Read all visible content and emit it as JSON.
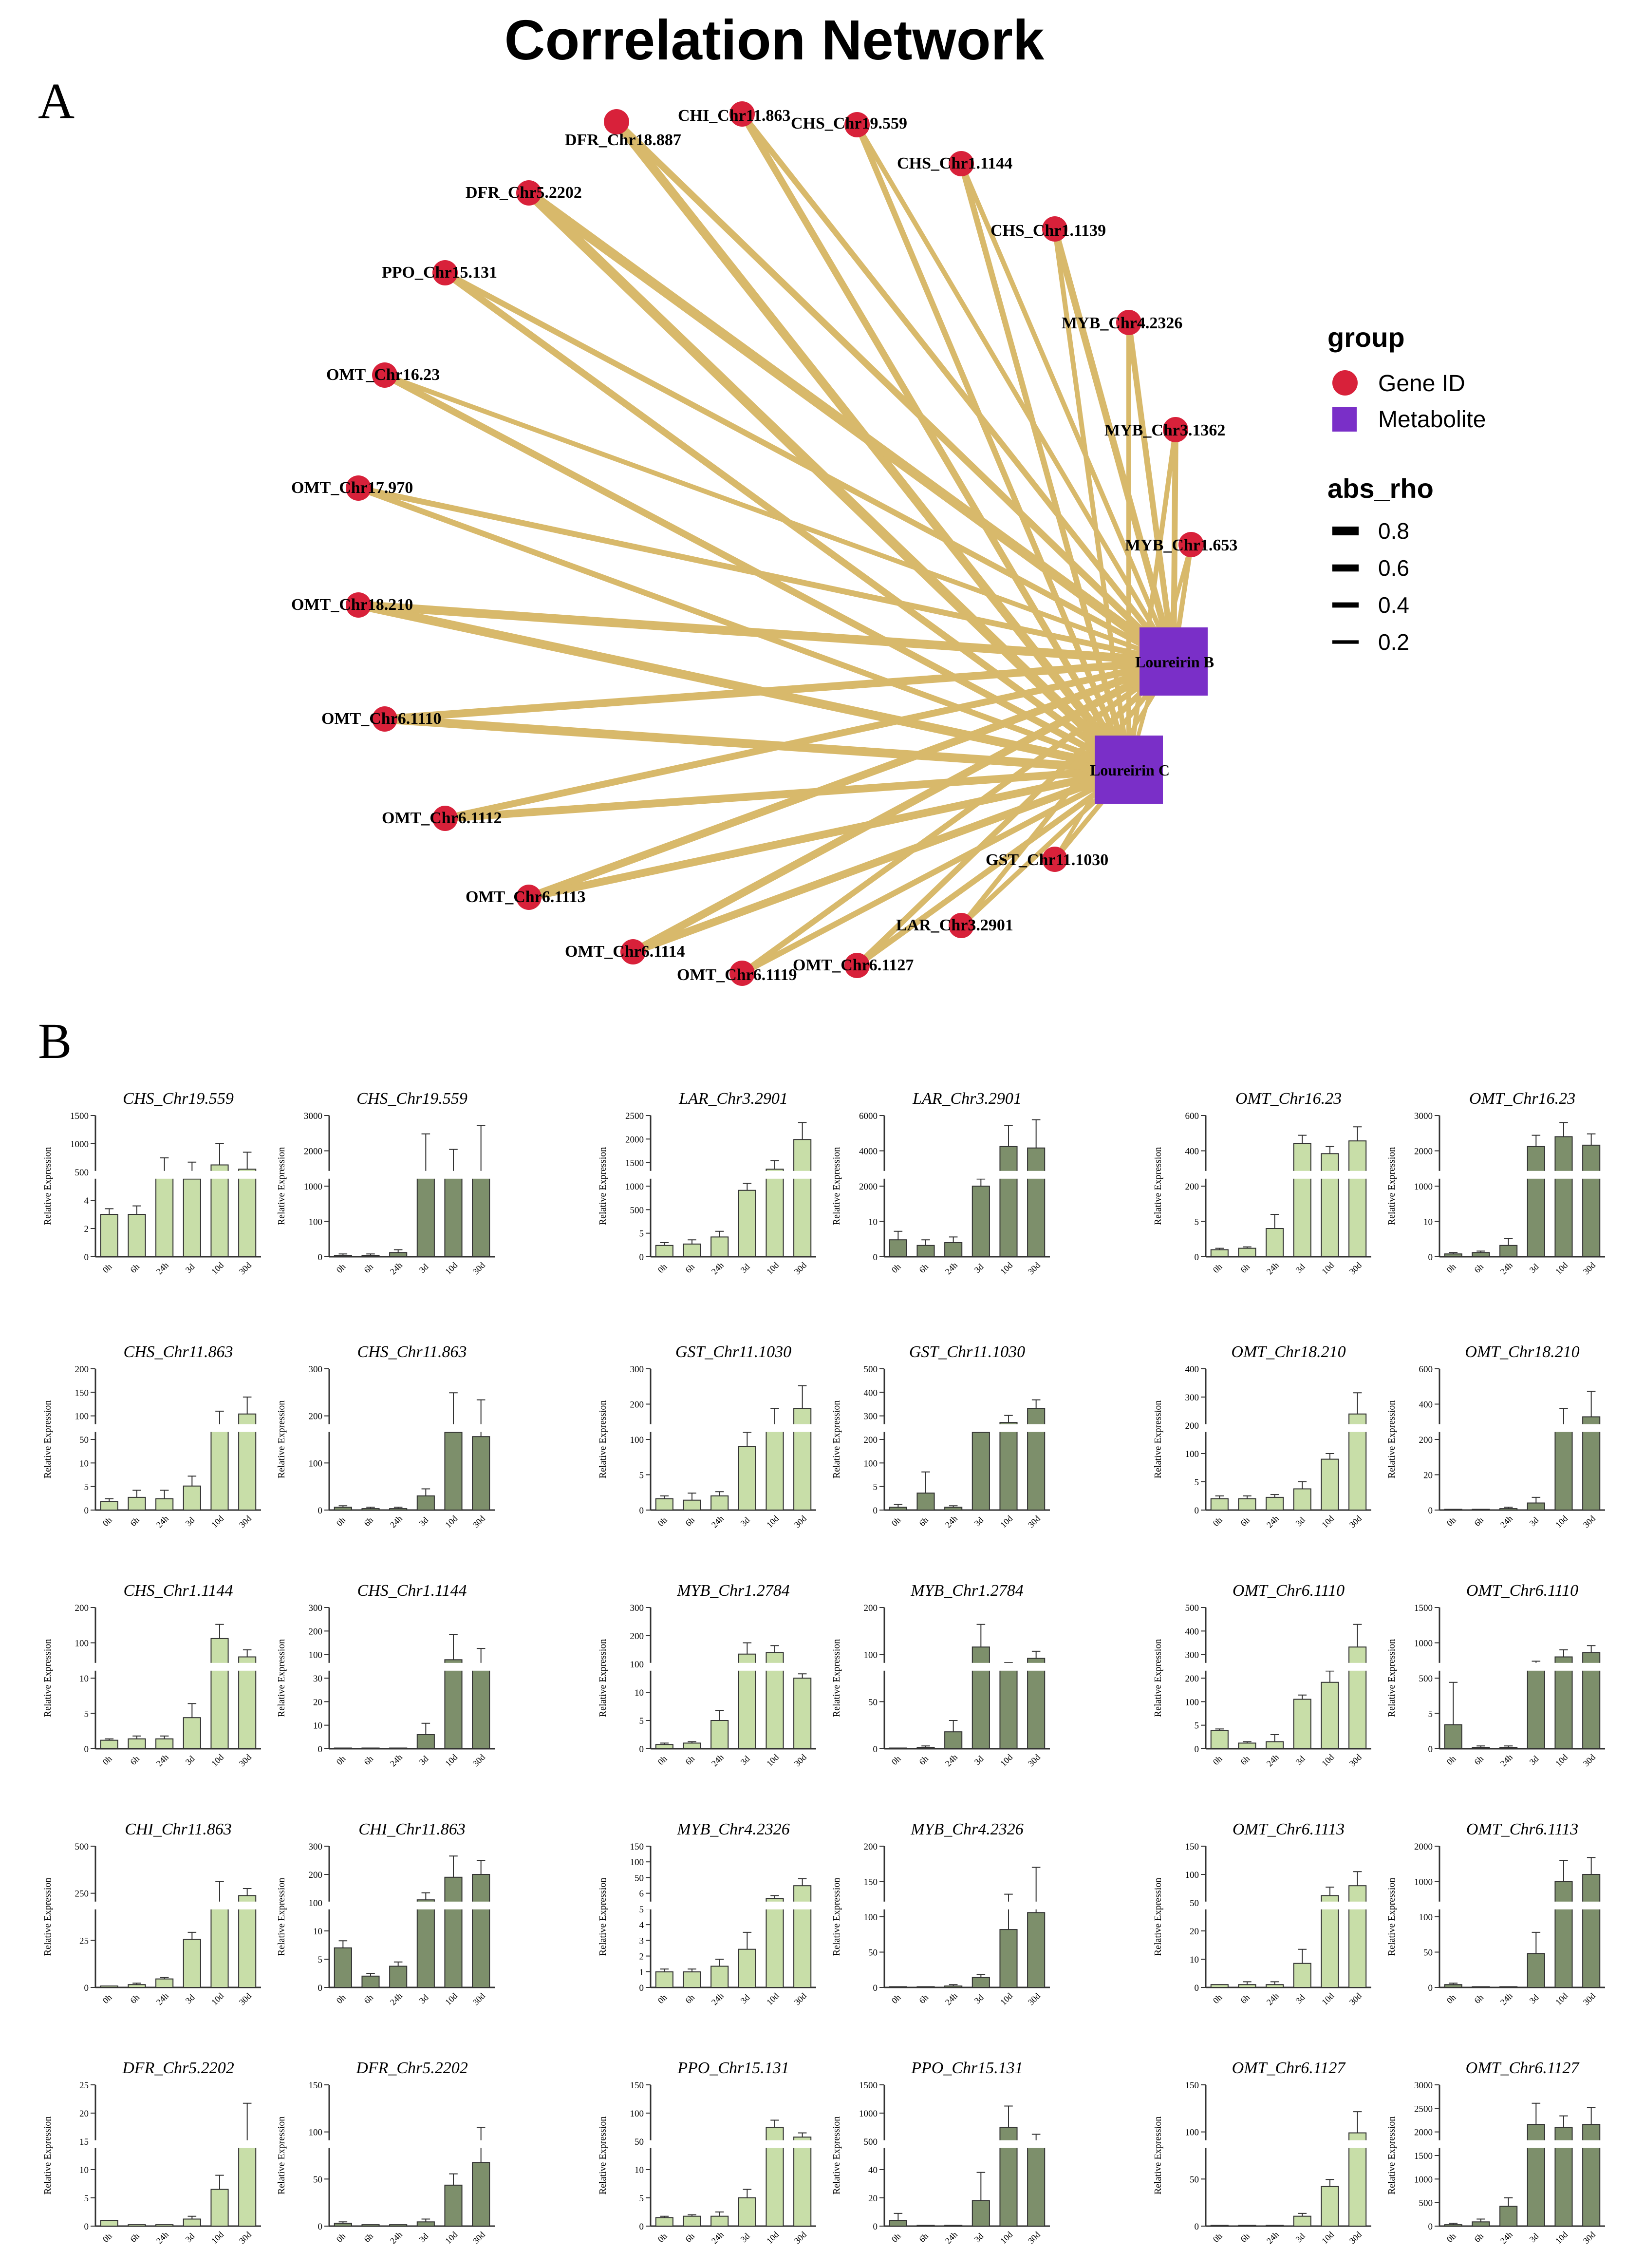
{
  "title": "Correlation Network",
  "panel_a_label": "A",
  "panel_b_label": "B",
  "colors": {
    "gene": "#d8213a",
    "metabolite": "#7a2fc8",
    "edge": "#d8b96b",
    "light_bar": "#c8dea8",
    "dark_bar": "#7d8f6b"
  },
  "legend": {
    "group_title": "group",
    "gene_label": "Gene ID",
    "metabolite_label": "Metabolite",
    "rho_title": "abs_rho",
    "rho_values": [
      0.8,
      0.6,
      0.4,
      0.2
    ],
    "rho_labels": [
      "0.8",
      "0.6",
      "0.4",
      "0.2"
    ]
  },
  "chart_data": [
    {
      "type": "network",
      "title": "Correlation Network",
      "groups": [
        "Gene ID",
        "Metabolite"
      ],
      "metabolites": [
        "Loureirin B",
        "Loureirin C"
      ],
      "genes": [
        {
          "id": "DFR_Chr18.887",
          "rho_B": 0.5,
          "rho_C": 0.7
        },
        {
          "id": "CHI_Chr11.863",
          "rho_B": 0.4,
          "rho_C": 0.5
        },
        {
          "id": "CHS_Chr19.559",
          "rho_B": 0.3,
          "rho_C": 0.4
        },
        {
          "id": "CHS_Chr1.1144",
          "rho_B": 0.3,
          "rho_C": 0.4
        },
        {
          "id": "CHS_Chr1.1139",
          "rho_B": 0.5,
          "rho_C": 0.3
        },
        {
          "id": "MYB_Chr4.2326",
          "rho_B": 0.4,
          "rho_C": 0.3
        },
        {
          "id": "MYB_Chr3.1362",
          "rho_B": 0.4,
          "rho_C": 0.3
        },
        {
          "id": "MYB_Chr1.653",
          "rho_B": 0.3,
          "rho_C": 0.2
        },
        {
          "id": "DFR_Chr5.2202",
          "rho_B": 0.8,
          "rho_C": 0.8
        },
        {
          "id": "PPO_Chr15.131",
          "rho_B": 0.4,
          "rho_C": 0.5
        },
        {
          "id": "OMT_Chr16.23",
          "rho_B": 0.3,
          "rho_C": 0.5
        },
        {
          "id": "OMT_Chr17.970",
          "rho_B": 0.4,
          "rho_C": 0.4
        },
        {
          "id": "OMT_Chr18.210",
          "rho_B": 0.7,
          "rho_C": 0.7
        },
        {
          "id": "OMT_Chr6.1110",
          "rho_B": 0.6,
          "rho_C": 0.7
        },
        {
          "id": "OMT_Chr6.1112",
          "rho_B": 0.5,
          "rho_C": 0.6
        },
        {
          "id": "OMT_Chr6.1113",
          "rho_B": 0.6,
          "rho_C": 0.6
        },
        {
          "id": "OMT_Chr6.1114",
          "rho_B": 0.6,
          "rho_C": 0.6
        },
        {
          "id": "OMT_Chr6.1119",
          "rho_B": 0.4,
          "rho_C": 0.4
        },
        {
          "id": "OMT_Chr6.1127",
          "rho_B": 0.4,
          "rho_C": 0.4
        },
        {
          "id": "LAR_Chr3.2901",
          "rho_B": 0.3,
          "rho_C": 0.3
        },
        {
          "id": "GST_Chr11.1030",
          "rho_B": 0.2,
          "rho_C": 0.3
        }
      ]
    },
    {
      "type": "bar",
      "panel": "B",
      "categories": [
        "0h",
        "6h",
        "24h",
        "3d",
        "10d",
        "30d"
      ],
      "ylabel": "Relative Expression",
      "charts": [
        {
          "title": "CHS_Chr19.559",
          "style": "light",
          "ticks": [
            "0",
            "2",
            "4",
            "500",
            "1000",
            "1500"
          ],
          "values": [
            0.3,
            0.3,
            0.6,
            0.55,
            0.65,
            0.62
          ],
          "errors": [
            0.04,
            0.06,
            0.1,
            0.12,
            0.15,
            0.12
          ]
        },
        {
          "title": "CHS_Chr19.559",
          "style": "dark",
          "ticks": [
            "0",
            "100",
            "1000",
            "2000",
            "3000"
          ],
          "values": [
            0.01,
            0.01,
            0.03,
            0.57,
            0.56,
            0.58
          ],
          "errors": [
            0.01,
            0.01,
            0.02,
            0.3,
            0.2,
            0.35
          ]
        },
        {
          "title": "LAR_Chr3.2901",
          "style": "light",
          "ticks": [
            "0",
            "5",
            "500",
            "1000",
            "1500",
            "2000",
            "2500"
          ],
          "values": [
            0.08,
            0.09,
            0.14,
            0.47,
            0.62,
            0.83
          ],
          "errors": [
            0.02,
            0.03,
            0.04,
            0.05,
            0.06,
            0.12
          ]
        },
        {
          "title": "LAR_Chr3.2901",
          "style": "dark",
          "ticks": [
            "0",
            "10",
            "2000",
            "4000",
            "6000"
          ],
          "values": [
            0.12,
            0.08,
            0.1,
            0.5,
            0.78,
            0.77
          ],
          "errors": [
            0.06,
            0.04,
            0.04,
            0.05,
            0.15,
            0.2
          ]
        },
        {
          "title": "OMT_Chr16.23",
          "style": "light",
          "ticks": [
            "0",
            "5",
            "200",
            "400",
            "600"
          ],
          "values": [
            0.05,
            0.06,
            0.2,
            0.8,
            0.73,
            0.82
          ],
          "errors": [
            0.01,
            0.01,
            0.1,
            0.06,
            0.05,
            0.1
          ]
        },
        {
          "title": "OMT_Chr16.23",
          "style": "dark",
          "ticks": [
            "0",
            "10",
            "1000",
            "2000",
            "3000"
          ],
          "values": [
            0.02,
            0.03,
            0.08,
            0.78,
            0.85,
            0.79
          ],
          "errors": [
            0.01,
            0.01,
            0.05,
            0.08,
            0.1,
            0.08
          ]
        },
        {
          "title": "CHS_Chr11.863",
          "style": "light",
          "ticks": [
            "0",
            "5",
            "10",
            "50",
            "100",
            "150",
            "200"
          ],
          "values": [
            0.06,
            0.09,
            0.08,
            0.17,
            0.6,
            0.68
          ],
          "errors": [
            0.02,
            0.05,
            0.06,
            0.07,
            0.1,
            0.12
          ]
        },
        {
          "title": "CHS_Chr11.863",
          "style": "dark",
          "ticks": [
            "0",
            "100",
            "200",
            "300"
          ],
          "values": [
            0.02,
            0.01,
            0.01,
            0.1,
            0.55,
            0.52
          ],
          "errors": [
            0.01,
            0.01,
            0.01,
            0.05,
            0.28,
            0.26
          ]
        },
        {
          "title": "GST_Chr11.1030",
          "style": "light",
          "ticks": [
            "0",
            "5",
            "100",
            "200",
            "300"
          ],
          "values": [
            0.08,
            0.07,
            0.1,
            0.45,
            0.6,
            0.72
          ],
          "errors": [
            0.02,
            0.05,
            0.03,
            0.1,
            0.12,
            0.16
          ]
        },
        {
          "title": "GST_Chr11.1030",
          "style": "dark",
          "ticks": [
            "0",
            "5",
            "100",
            "200",
            "300",
            "400",
            "500"
          ],
          "values": [
            0.02,
            0.12,
            0.02,
            0.55,
            0.62,
            0.72
          ],
          "errors": [
            0.02,
            0.15,
            0.01,
            0.04,
            0.05,
            0.06
          ]
        },
        {
          "title": "OMT_Chr18.210",
          "style": "light",
          "ticks": [
            "0",
            "5",
            "100",
            "200",
            "300",
            "400"
          ],
          "values": [
            0.08,
            0.08,
            0.09,
            0.15,
            0.36,
            0.68
          ],
          "errors": [
            0.02,
            0.02,
            0.02,
            0.05,
            0.04,
            0.15
          ]
        },
        {
          "title": "OMT_Chr18.210",
          "style": "dark",
          "ticks": [
            "0",
            "20",
            "200",
            "400",
            "600"
          ],
          "values": [
            0.0,
            0.0,
            0.01,
            0.05,
            0.6,
            0.66
          ],
          "errors": [
            0.0,
            0.0,
            0.01,
            0.04,
            0.12,
            0.18
          ]
        },
        {
          "title": "CHS_Chr1.1144",
          "style": "light",
          "ticks": [
            "0",
            "5",
            "10",
            "100",
            "200"
          ],
          "values": [
            0.06,
            0.07,
            0.07,
            0.22,
            0.78,
            0.65
          ],
          "errors": [
            0.01,
            0.02,
            0.02,
            0.1,
            0.1,
            0.05
          ]
        },
        {
          "title": "CHS_Chr1.1144",
          "style": "dark",
          "ticks": [
            "0",
            "10",
            "20",
            "30",
            "100",
            "200",
            "300"
          ],
          "values": [
            0.0,
            0.0,
            0.0,
            0.1,
            0.63,
            0.59
          ],
          "errors": [
            0.0,
            0.0,
            0.0,
            0.08,
            0.18,
            0.12
          ]
        },
        {
          "title": "MYB_Chr1.2784",
          "style": "light",
          "ticks": [
            "0",
            "5",
            "10",
            "100",
            "200",
            "300"
          ],
          "values": [
            0.03,
            0.04,
            0.2,
            0.67,
            0.68,
            0.5
          ],
          "errors": [
            0.01,
            0.01,
            0.07,
            0.08,
            0.05,
            0.03
          ]
        },
        {
          "title": "MYB_Chr1.2784",
          "style": "dark",
          "ticks": [
            "0",
            "50",
            "100",
            "200"
          ],
          "values": [
            0.0,
            0.01,
            0.12,
            0.72,
            0.6,
            0.64
          ],
          "errors": [
            0.0,
            0.01,
            0.08,
            0.16,
            0.01,
            0.05
          ]
        },
        {
          "title": "OMT_Chr6.1110",
          "style": "light",
          "ticks": [
            "0",
            "5",
            "100",
            "200",
            "300",
            "400",
            "500"
          ],
          "values": [
            0.13,
            0.04,
            0.05,
            0.35,
            0.47,
            0.72
          ],
          "errors": [
            0.01,
            0.01,
            0.05,
            0.03,
            0.08,
            0.16
          ]
        },
        {
          "title": "OMT_Chr6.1110",
          "style": "dark",
          "ticks": [
            "0",
            "5",
            "500",
            "1000",
            "1500"
          ],
          "values": [
            0.17,
            0.01,
            0.01,
            0.6,
            0.65,
            0.68
          ],
          "errors": [
            0.3,
            0.01,
            0.01,
            0.02,
            0.05,
            0.05
          ]
        },
        {
          "title": "CHI_Chr11.863",
          "style": "light",
          "ticks": [
            "0",
            "25",
            "250",
            "500"
          ],
          "values": [
            0.01,
            0.02,
            0.06,
            0.34,
            0.6,
            0.65
          ],
          "errors": [
            0.0,
            0.01,
            0.01,
            0.05,
            0.15,
            0.05
          ]
        },
        {
          "title": "CHI_Chr11.863",
          "style": "dark",
          "ticks": [
            "0",
            "5",
            "10",
            "100",
            "200",
            "300"
          ],
          "values": [
            0.28,
            0.08,
            0.15,
            0.62,
            0.78,
            0.8
          ],
          "errors": [
            0.05,
            0.02,
            0.03,
            0.05,
            0.15,
            0.1
          ]
        },
        {
          "title": "MYB_Chr4.2326",
          "style": "light",
          "ticks": [
            "0",
            "1",
            "2",
            "3",
            "4",
            "5",
            "6",
            "50",
            "100",
            "150"
          ],
          "values": [
            0.11,
            0.11,
            0.15,
            0.27,
            0.63,
            0.72
          ],
          "errors": [
            0.02,
            0.02,
            0.05,
            0.12,
            0.02,
            0.05
          ]
        },
        {
          "title": "MYB_Chr4.2326",
          "style": "dark",
          "ticks": [
            "0",
            "50",
            "100",
            "150",
            "200"
          ],
          "values": [
            0.0,
            0.0,
            0.01,
            0.07,
            0.41,
            0.53
          ],
          "errors": [
            0.0,
            0.0,
            0.01,
            0.02,
            0.25,
            0.32
          ]
        },
        {
          "title": "OMT_Chr6.1113",
          "style": "light",
          "ticks": [
            "0",
            "10",
            "20",
            "50",
            "100",
            "150"
          ],
          "values": [
            0.02,
            0.02,
            0.02,
            0.17,
            0.65,
            0.72
          ],
          "errors": [
            0.0,
            0.02,
            0.02,
            0.1,
            0.06,
            0.1
          ]
        },
        {
          "title": "OMT_Chr6.1113",
          "style": "dark",
          "ticks": [
            "0",
            "50",
            "100",
            "1000",
            "2000"
          ],
          "values": [
            0.02,
            0.0,
            0.0,
            0.24,
            0.75,
            0.8
          ],
          "errors": [
            0.01,
            0.0,
            0.0,
            0.15,
            0.15,
            0.12
          ]
        },
        {
          "title": "DFR_Chr5.2202",
          "style": "light",
          "ticks": [
            "0",
            "5",
            "10",
            "15",
            "20",
            "25"
          ],
          "values": [
            0.04,
            0.01,
            0.01,
            0.05,
            0.26,
            0.6
          ],
          "errors": [
            0.0,
            0.0,
            0.0,
            0.02,
            0.1,
            0.27
          ]
        },
        {
          "title": "DFR_Chr5.2202",
          "style": "dark",
          "ticks": [
            "0",
            "50",
            "100",
            "150"
          ],
          "values": [
            0.02,
            0.01,
            0.01,
            0.03,
            0.29,
            0.45
          ],
          "errors": [
            0.01,
            0.0,
            0.0,
            0.02,
            0.08,
            0.25
          ]
        },
        {
          "title": "PPO_Chr15.131",
          "style": "light",
          "ticks": [
            "0",
            "5",
            "10",
            "50",
            "100",
            "150"
          ],
          "values": [
            0.06,
            0.07,
            0.07,
            0.2,
            0.7,
            0.63
          ],
          "errors": [
            0.01,
            0.01,
            0.03,
            0.06,
            0.05,
            0.03
          ]
        },
        {
          "title": "PPO_Chr15.131",
          "style": "dark",
          "ticks": [
            "0",
            "20",
            "40",
            "500",
            "1000",
            "1500"
          ],
          "values": [
            0.04,
            0.0,
            0.0,
            0.18,
            0.7,
            0.6
          ],
          "errors": [
            0.05,
            0.0,
            0.0,
            0.2,
            0.15,
            0.05
          ]
        },
        {
          "title": "OMT_Chr6.1127",
          "style": "light",
          "ticks": [
            "0",
            "50",
            "100",
            "150"
          ],
          "values": [
            0.0,
            0.0,
            0.0,
            0.07,
            0.28,
            0.66
          ],
          "errors": [
            0.0,
            0.0,
            0.0,
            0.02,
            0.05,
            0.15
          ]
        },
        {
          "title": "OMT_Chr6.1127",
          "style": "dark",
          "ticks": [
            "0",
            "500",
            "1000",
            "1500",
            "2000",
            "2500",
            "3000"
          ],
          "values": [
            0.01,
            0.03,
            0.14,
            0.72,
            0.7,
            0.72
          ],
          "errors": [
            0.01,
            0.02,
            0.06,
            0.15,
            0.08,
            0.12
          ]
        }
      ]
    }
  ]
}
